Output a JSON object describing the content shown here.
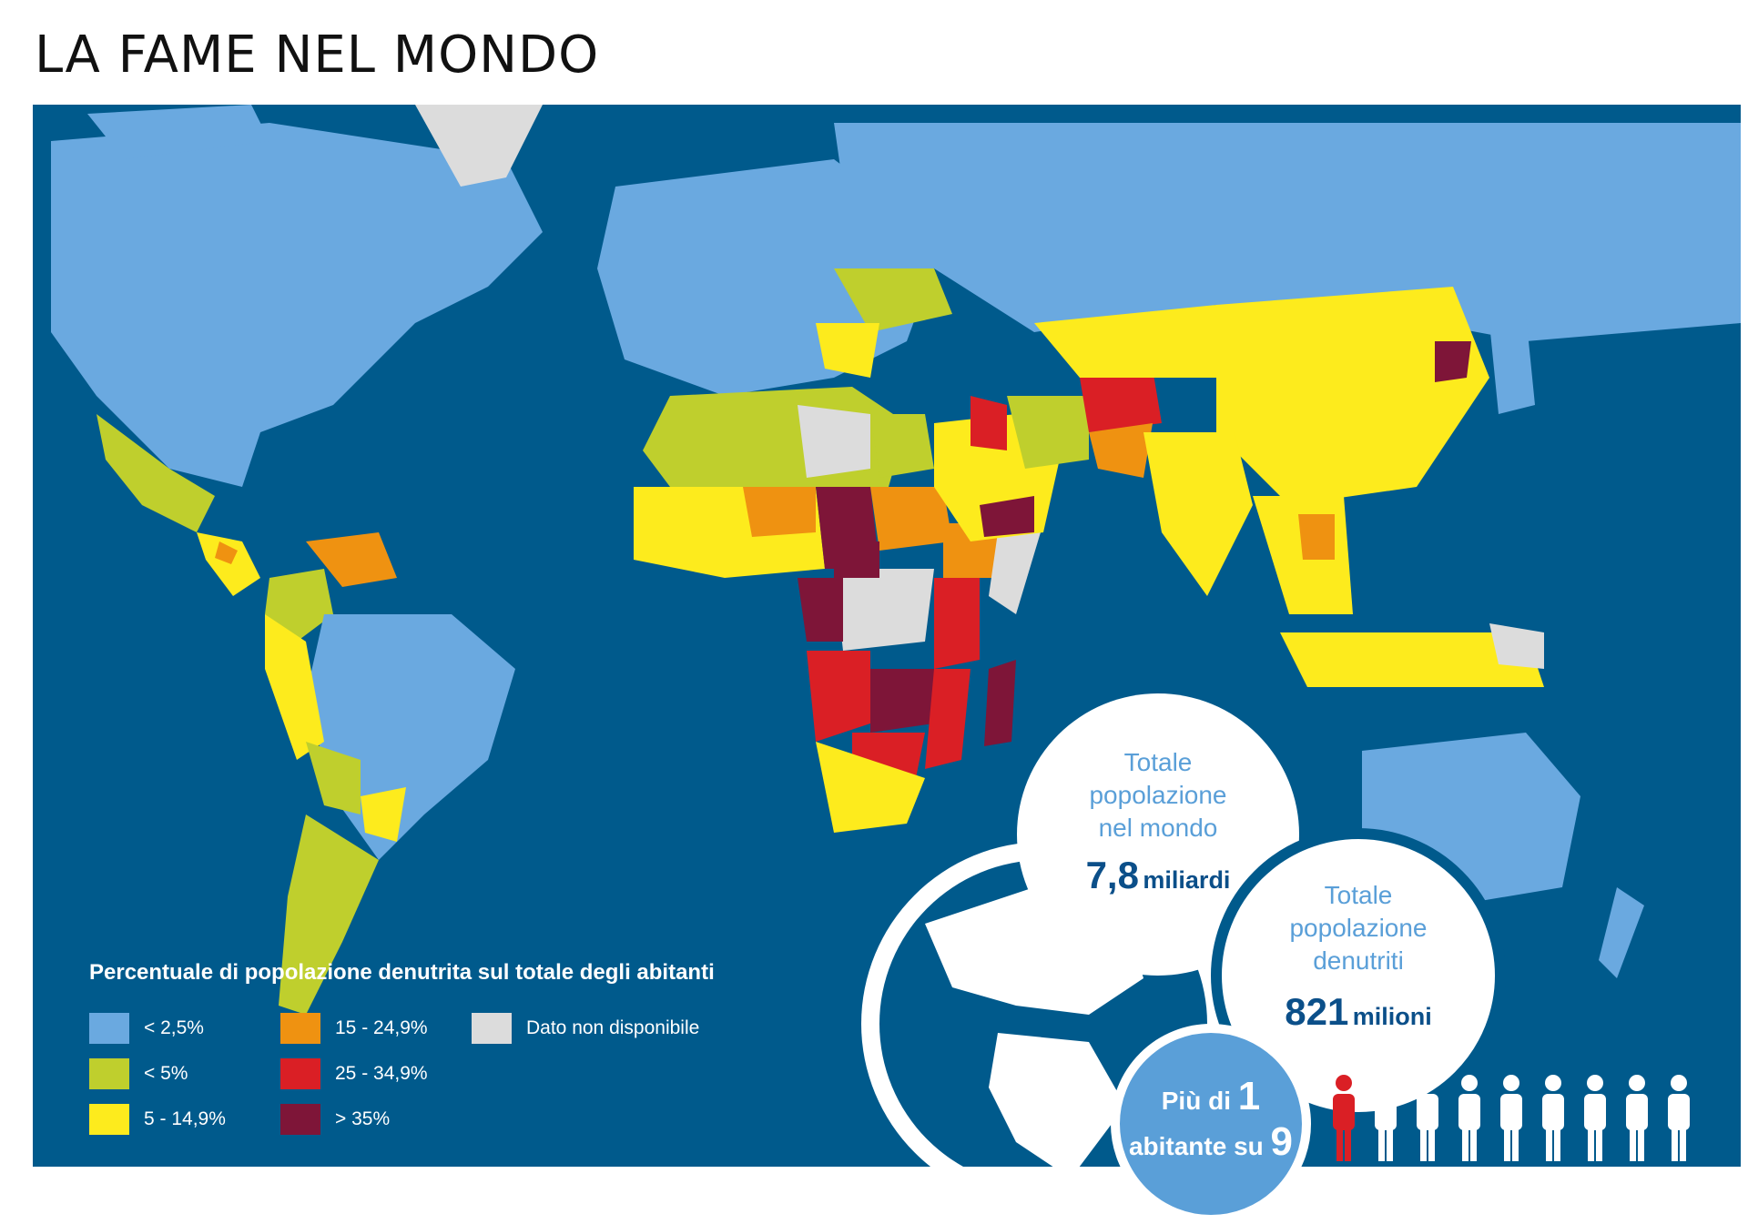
{
  "title": "LA FAME NEL MONDO",
  "legend": {
    "title": "Percentuale di popolazione denutrita sul totale degli abitanti",
    "items": [
      {
        "label": "< 2,5%",
        "color": "#6aa9e0"
      },
      {
        "label": "15 - 24,9%",
        "color": "#ef9211"
      },
      {
        "label": "Dato non disponibile",
        "color": "#dcdcdc"
      },
      {
        "label": "< 5%",
        "color": "#bfcf2d"
      },
      {
        "label": "25 - 34,9%",
        "color": "#da1f25"
      },
      {
        "label": "",
        "color": ""
      },
      {
        "label": "5 - 14,9%",
        "color": "#fdeb1d"
      },
      {
        "label": "> 35%",
        "color": "#7e1538"
      }
    ]
  },
  "stats": {
    "world_pop": {
      "label_lines": [
        "Totale",
        "popolazione",
        "nel mondo"
      ],
      "value": "7,8",
      "unit": "miliardi"
    },
    "undernourished": {
      "label_lines": [
        "Totale",
        "popolazione",
        "denutriti"
      ],
      "value": "821",
      "unit": "milioni"
    },
    "ratio": {
      "line1": "Più di",
      "num1": "1",
      "line2": "abitante su",
      "num2": "9"
    }
  },
  "colors": {
    "ocean": "#005a8c",
    "very_low": "#6aa9e0",
    "low": "#bfcf2d",
    "moderate": "#fdeb1d",
    "high": "#ef9211",
    "very_high": "#da1f25",
    "extreme": "#7e1538",
    "na": "#dcdcdc",
    "accent_blue": "#5a9fd8",
    "dark_blue": "#0b4f89"
  },
  "people_icons": {
    "highlighted": 1,
    "total": 9,
    "icon": "person-icon"
  }
}
